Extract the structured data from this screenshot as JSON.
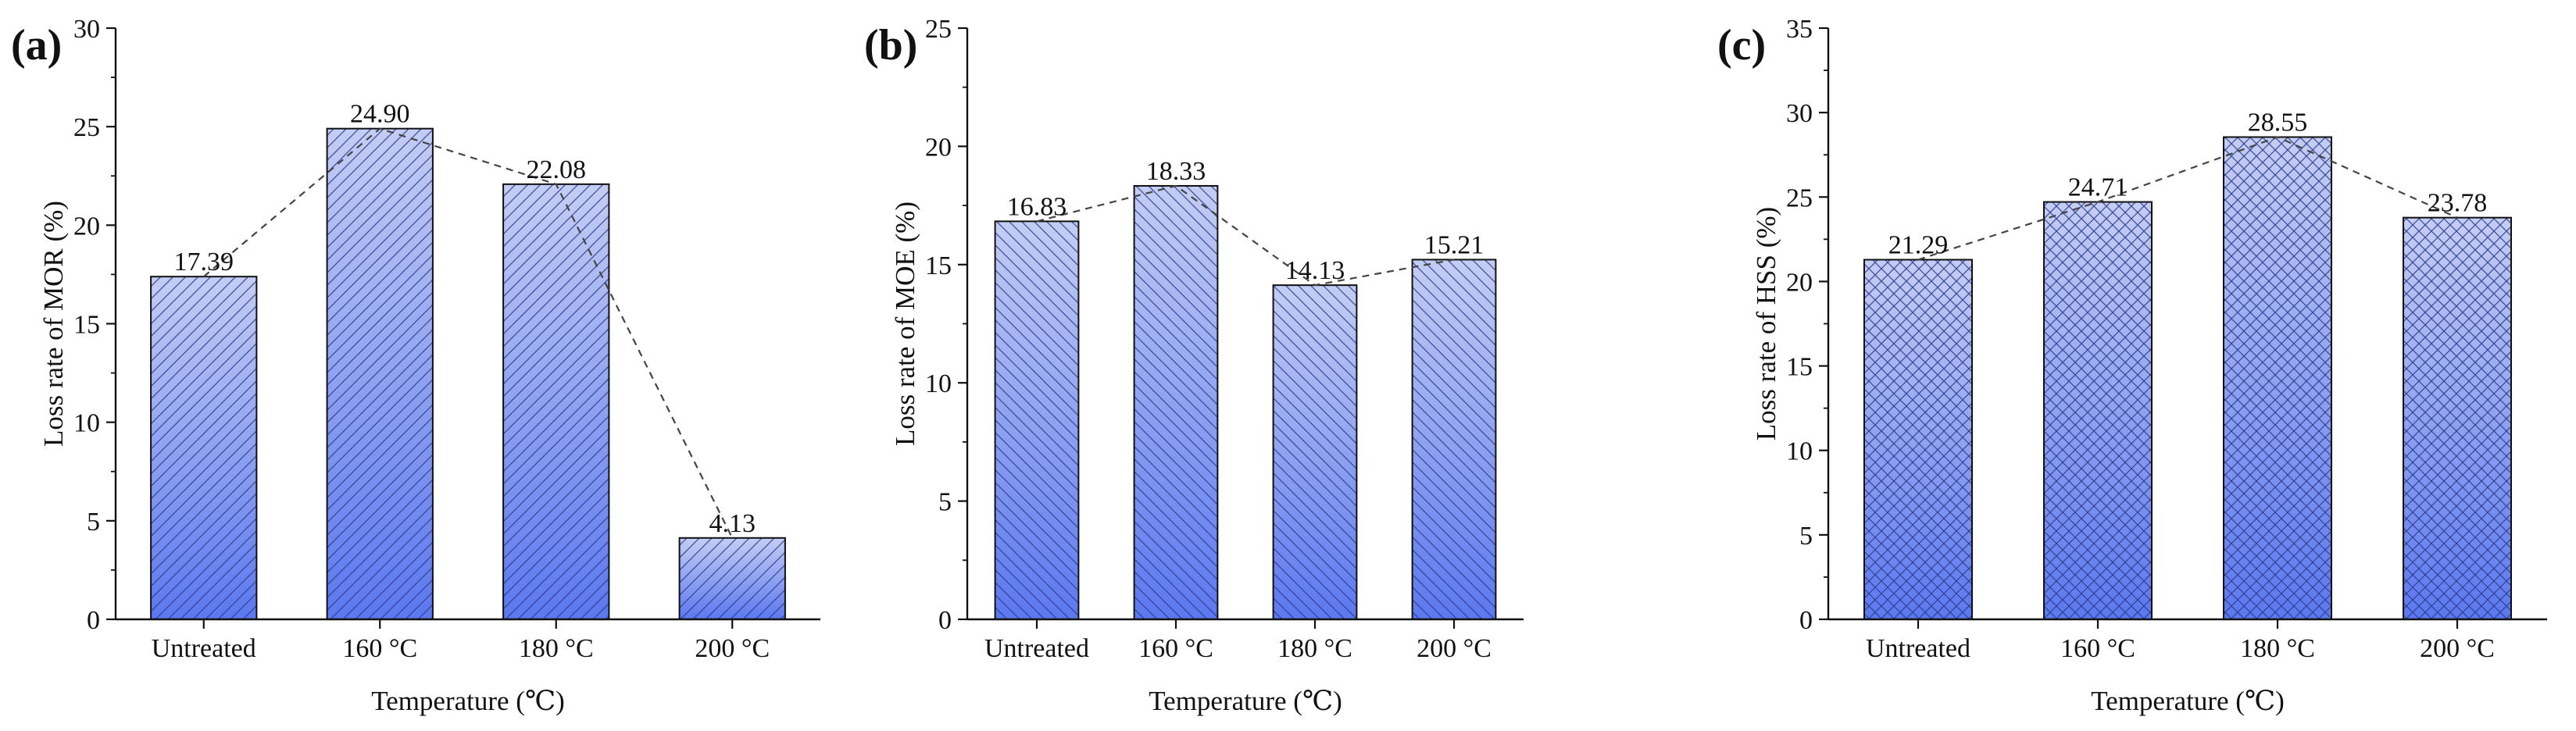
{
  "chart_data": [
    {
      "type": "bar",
      "panel_label": "(a)",
      "categories": [
        "Untreated",
        "160 °C",
        "180 °C",
        "200 °C"
      ],
      "values": [
        17.39,
        24.9,
        22.08,
        4.13
      ],
      "value_labels": [
        "17.39",
        "24.90",
        "22.08",
        "4.13"
      ],
      "xlabel": "Temperature (℃)",
      "ylabel": "Loss rate of MOR (%)",
      "ylim": [
        0,
        30
      ],
      "yticks": [
        0,
        5,
        10,
        15,
        20,
        25,
        30
      ],
      "pattern": "diagonal",
      "trend_line": "dashed"
    },
    {
      "type": "bar",
      "panel_label": "(b)",
      "categories": [
        "Untreated",
        "160 °C",
        "180 °C",
        "200 °C"
      ],
      "values": [
        16.83,
        18.33,
        14.13,
        15.21
      ],
      "value_labels": [
        "16.83",
        "18.33",
        "14.13",
        "15.21"
      ],
      "xlabel": "Temperature (℃)",
      "ylabel": "Loss rate of MOE (%)",
      "ylim": [
        0,
        25
      ],
      "yticks": [
        0,
        5,
        10,
        15,
        20,
        25
      ],
      "pattern": "antidiagonal",
      "trend_line": "dashed"
    },
    {
      "type": "bar",
      "panel_label": "(c)",
      "categories": [
        "Untreated",
        "160 °C",
        "180 °C",
        "200 °C"
      ],
      "values": [
        21.29,
        24.71,
        28.55,
        23.78
      ],
      "value_labels": [
        "21.29",
        "24.71",
        "28.55",
        "23.78"
      ],
      "xlabel": "Temperature (℃)",
      "ylabel": "Loss rate of HSS (%)",
      "ylim": [
        0,
        35
      ],
      "yticks": [
        0,
        5,
        10,
        15,
        20,
        25,
        30,
        35
      ],
      "pattern": "crosshatch",
      "trend_line": "dashed"
    }
  ],
  "style": {
    "bar_top_color": "#c4cdf3",
    "bar_bottom_color": "#5b78ef",
    "hatch_color": "#2a3a8a",
    "axis_color": "#111111",
    "trend_color": "#444444"
  }
}
